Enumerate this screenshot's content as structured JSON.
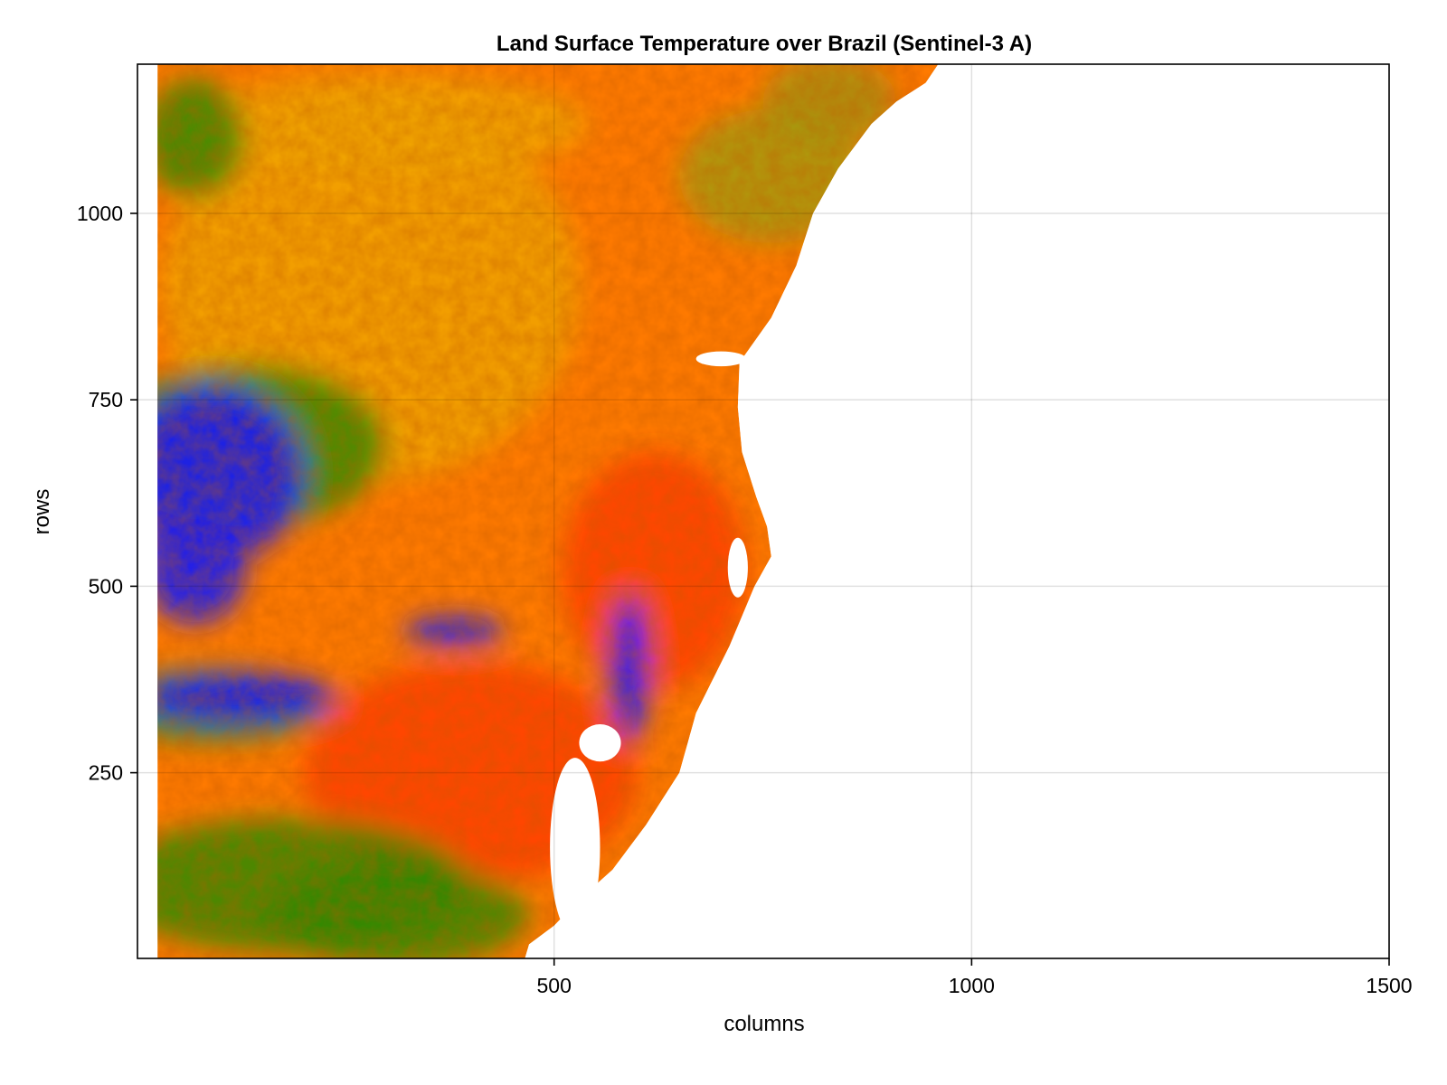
{
  "chart_data": {
    "type": "heatmap",
    "title": "Land Surface Temperature over Brazil (Sentinel-3 A)",
    "xlabel": "columns",
    "ylabel": "rows",
    "xlim": [
      1,
      1500
    ],
    "ylim": [
      1,
      1200
    ],
    "x_ticks": [
      500,
      1000,
      1500
    ],
    "y_ticks": [
      250,
      500,
      750,
      1000
    ],
    "grid": true,
    "colormap": [
      "#2200ff",
      "#1a1aff",
      "#0a6a3a",
      "#2f8a00",
      "#a0a000",
      "#e5a000",
      "#ff8a00",
      "#ff5a00",
      "#ff2e00"
    ],
    "colors": {
      "no_data": "#ffffff",
      "warm_dominant": "#ff7a00",
      "hot": "#ff3c00",
      "mild": "#f0a400",
      "cool": "#2f8a00",
      "cold": "#1a1aee",
      "coastal_olive": "#a49a10"
    },
    "land_boundary": {
      "coast_columns_by_row": [
        [
          1,
          465
        ],
        [
          20,
          470
        ],
        [
          45,
          500
        ],
        [
          80,
          530
        ],
        [
          120,
          570
        ],
        [
          180,
          610
        ],
        [
          250,
          650
        ],
        [
          330,
          670
        ],
        [
          420,
          710
        ],
        [
          500,
          740
        ],
        [
          540,
          760
        ],
        [
          580,
          755
        ],
        [
          620,
          742
        ],
        [
          680,
          725
        ],
        [
          740,
          720
        ],
        [
          800,
          722
        ],
        [
          860,
          760
        ],
        [
          930,
          790
        ],
        [
          1000,
          810
        ],
        [
          1060,
          840
        ],
        [
          1120,
          880
        ],
        [
          1150,
          910
        ],
        [
          1175,
          945
        ],
        [
          1200,
          960
        ]
      ],
      "left_edge_column": 25
    },
    "features": [
      {
        "label": "cold",
        "cx": 90,
        "cy": 650,
        "rx": 110,
        "ry": 120
      },
      {
        "label": "cold",
        "cx": 70,
        "cy": 520,
        "rx": 60,
        "ry": 70
      },
      {
        "label": "cold",
        "cx": 120,
        "cy": 350,
        "rx": 120,
        "ry": 35
      },
      {
        "label": "cold",
        "cx": 380,
        "cy": 440,
        "rx": 60,
        "ry": 20
      },
      {
        "label": "cold",
        "cx": 590,
        "cy": 390,
        "rx": 25,
        "ry": 100
      },
      {
        "label": "cool",
        "cx": 130,
        "cy": 690,
        "rx": 170,
        "ry": 110
      },
      {
        "label": "cool",
        "cx": 180,
        "cy": 100,
        "rx": 220,
        "ry": 90
      },
      {
        "label": "cool",
        "cx": 310,
        "cy": 60,
        "rx": 160,
        "ry": 70
      },
      {
        "label": "cool",
        "cx": 90,
        "cy": 340,
        "rx": 140,
        "ry": 50
      },
      {
        "label": "cool",
        "cx": 70,
        "cy": 1100,
        "rx": 60,
        "ry": 80
      },
      {
        "label": "coastal_olive",
        "cx": 760,
        "cy": 1050,
        "rx": 110,
        "ry": 90
      },
      {
        "label": "coastal_olive",
        "cx": 830,
        "cy": 1150,
        "rx": 80,
        "ry": 60
      },
      {
        "label": "mild",
        "cx": 280,
        "cy": 900,
        "rx": 250,
        "ry": 260
      },
      {
        "label": "mild",
        "cx": 300,
        "cy": 1120,
        "rx": 240,
        "ry": 70
      },
      {
        "label": "hot",
        "cx": 400,
        "cy": 250,
        "rx": 200,
        "ry": 150
      },
      {
        "label": "hot",
        "cx": 620,
        "cy": 520,
        "rx": 110,
        "ry": 160
      },
      {
        "label": "hot",
        "cx": 840,
        "cy": 1150,
        "rx": 80,
        "ry": 50
      }
    ],
    "lakes": [
      {
        "cx": 525,
        "cy": 150,
        "rx": 30,
        "ry": 120
      },
      {
        "cx": 555,
        "cy": 290,
        "rx": 25,
        "ry": 25
      },
      {
        "cx": 720,
        "cy": 525,
        "rx": 12,
        "ry": 40
      },
      {
        "cx": 700,
        "cy": 805,
        "rx": 30,
        "ry": 10
      }
    ]
  }
}
